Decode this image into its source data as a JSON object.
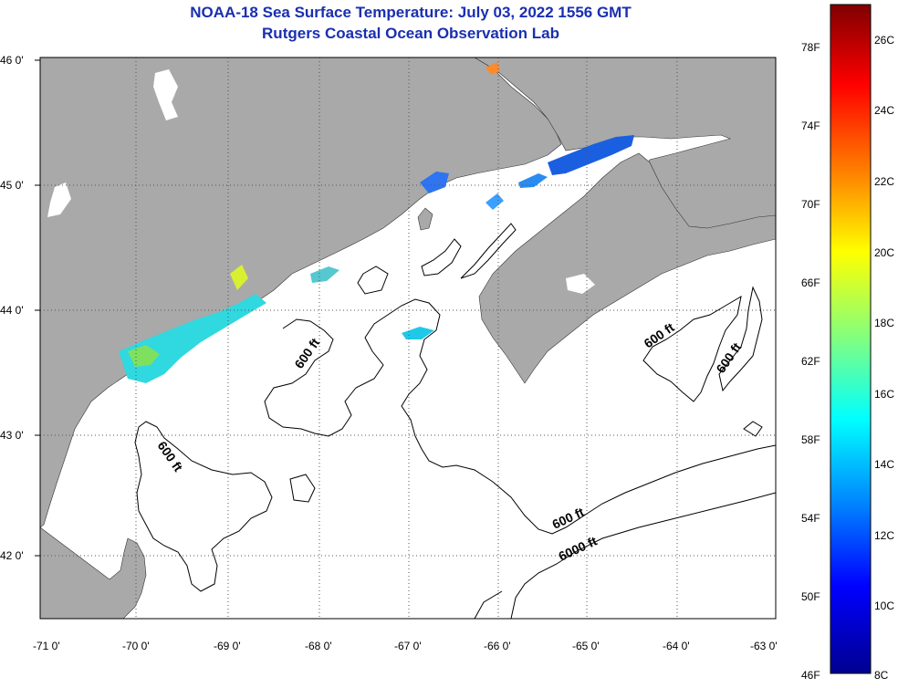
{
  "title": "NOAA-18 Sea Surface Temperature:  July 03, 2022 1556 GMT",
  "subtitle": "Rutgers Coastal Ocean Observation Lab",
  "map": {
    "lon_ticks": [
      "-71 0'",
      "-70 0'",
      "-69 0'",
      "-68 0'",
      "-67 0'",
      "-66 0'",
      "-65 0'",
      "-64 0'",
      "-63 0'"
    ],
    "lat_ticks": [
      "46 0'",
      "45 0'",
      "44 0'",
      "43 0'",
      "42 0'"
    ],
    "grid": true,
    "land_color": "#a9a9a9",
    "water_color": "#ffffff",
    "contour_labels": [
      "600 ft",
      "600 ft",
      "600 ft",
      "600 ft",
      "600 ft",
      "6000 ft"
    ]
  },
  "colorbar": {
    "fahrenheit": [
      "78F",
      "74F",
      "70F",
      "66F",
      "62F",
      "58F",
      "54F",
      "50F",
      "46F"
    ],
    "celsius": [
      "26C",
      "24C",
      "22C",
      "20C",
      "18C",
      "16C",
      "14C",
      "12C",
      "10C",
      "8C"
    ],
    "colors": [
      "#7f0000",
      "#ff0000",
      "#ff8000",
      "#ffff00",
      "#80ff80",
      "#00ffff",
      "#0080ff",
      "#0000ff",
      "#00008f"
    ]
  }
}
